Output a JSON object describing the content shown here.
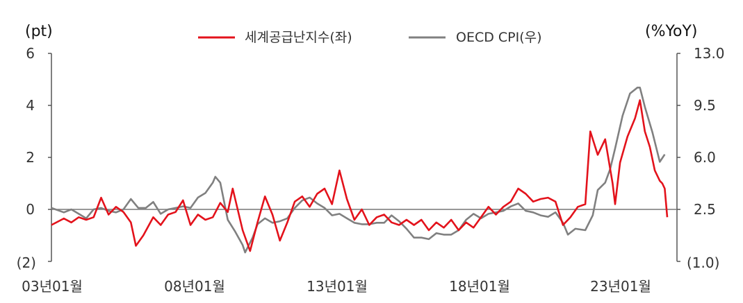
{
  "chart_data": {
    "type": "line",
    "left_unit": "(pt)",
    "right_unit": "(%YoY)",
    "legend_position": "top-center",
    "grid": false,
    "x_ticks": [
      "03년01월",
      "08년01월",
      "13년01월",
      "18년01월",
      "23년01월"
    ],
    "x_range": [
      "2003-01",
      "2023-09"
    ],
    "y_left_ticks": [
      "6",
      "4",
      "2",
      "0",
      "(2)"
    ],
    "y_left_range": [
      -2,
      6
    ],
    "y_right_ticks": [
      "13.0",
      "9.5",
      "6.0",
      "2.5",
      "(1.0)"
    ],
    "y_right_range": [
      -1.0,
      13.0
    ],
    "series": [
      {
        "name": "세계공급난지수(좌)",
        "axis": "left",
        "color": "#e3121b",
        "points": [
          [
            "2003-01",
            -0.6
          ],
          [
            "2003-06",
            -0.35
          ],
          [
            "2003-09",
            -0.5
          ],
          [
            "2003-12",
            -0.3
          ],
          [
            "2004-03",
            -0.4
          ],
          [
            "2004-06",
            -0.3
          ],
          [
            "2004-09",
            0.45
          ],
          [
            "2004-12",
            -0.2
          ],
          [
            "2005-03",
            0.1
          ],
          [
            "2005-06",
            -0.1
          ],
          [
            "2005-09",
            -0.5
          ],
          [
            "2005-11",
            -1.4
          ],
          [
            "2006-02",
            -1.0
          ],
          [
            "2006-06",
            -0.3
          ],
          [
            "2006-09",
            -0.6
          ],
          [
            "2006-12",
            -0.2
          ],
          [
            "2007-03",
            -0.1
          ],
          [
            "2007-06",
            0.35
          ],
          [
            "2007-09",
            -0.6
          ],
          [
            "2007-12",
            -0.2
          ],
          [
            "2008-03",
            -0.4
          ],
          [
            "2008-06",
            -0.3
          ],
          [
            "2008-09",
            0.25
          ],
          [
            "2008-12",
            -0.1
          ],
          [
            "2009-02",
            0.8
          ],
          [
            "2009-06",
            -0.8
          ],
          [
            "2009-09",
            -1.6
          ],
          [
            "2009-12",
            -0.5
          ],
          [
            "2010-03",
            0.5
          ],
          [
            "2010-06",
            -0.2
          ],
          [
            "2010-09",
            -1.2
          ],
          [
            "2010-12",
            -0.5
          ],
          [
            "2011-03",
            0.3
          ],
          [
            "2011-06",
            0.5
          ],
          [
            "2011-09",
            0.1
          ],
          [
            "2011-12",
            0.6
          ],
          [
            "2012-03",
            0.8
          ],
          [
            "2012-06",
            0.2
          ],
          [
            "2012-09",
            1.5
          ],
          [
            "2012-12",
            0.4
          ],
          [
            "2013-03",
            -0.4
          ],
          [
            "2013-06",
            0.0
          ],
          [
            "2013-09",
            -0.6
          ],
          [
            "2013-12",
            -0.3
          ],
          [
            "2014-03",
            -0.2
          ],
          [
            "2014-06",
            -0.5
          ],
          [
            "2014-09",
            -0.6
          ],
          [
            "2014-12",
            -0.4
          ],
          [
            "2015-03",
            -0.6
          ],
          [
            "2015-06",
            -0.4
          ],
          [
            "2015-09",
            -0.8
          ],
          [
            "2015-12",
            -0.5
          ],
          [
            "2016-03",
            -0.7
          ],
          [
            "2016-06",
            -0.4
          ],
          [
            "2016-09",
            -0.8
          ],
          [
            "2016-12",
            -0.5
          ],
          [
            "2017-03",
            -0.7
          ],
          [
            "2017-06",
            -0.3
          ],
          [
            "2017-09",
            0.1
          ],
          [
            "2017-12",
            -0.2
          ],
          [
            "2018-03",
            0.1
          ],
          [
            "2018-06",
            0.3
          ],
          [
            "2018-09",
            0.8
          ],
          [
            "2018-12",
            0.6
          ],
          [
            "2019-03",
            0.3
          ],
          [
            "2019-06",
            0.4
          ],
          [
            "2019-09",
            0.45
          ],
          [
            "2019-12",
            0.3
          ],
          [
            "2020-03",
            -0.6
          ],
          [
            "2020-06",
            -0.3
          ],
          [
            "2020-09",
            0.1
          ],
          [
            "2020-12",
            0.2
          ],
          [
            "2021-02",
            3.0
          ],
          [
            "2021-05",
            2.1
          ],
          [
            "2021-08",
            2.7
          ],
          [
            "2021-11",
            1.0
          ],
          [
            "2021-12",
            0.2
          ],
          [
            "2022-02",
            1.8
          ],
          [
            "2022-05",
            2.8
          ],
          [
            "2022-08",
            3.5
          ],
          [
            "2022-10",
            4.2
          ],
          [
            "2022-12",
            3.0
          ],
          [
            "2023-02",
            2.4
          ],
          [
            "2023-04",
            1.5
          ],
          [
            "2023-06",
            1.1
          ],
          [
            "2023-07",
            1.0
          ],
          [
            "2023-08",
            0.8
          ],
          [
            "2023-09",
            -0.3
          ]
        ]
      },
      {
        "name": "OECD CPI(우)",
        "axis": "right",
        "color": "#808080",
        "points": [
          [
            "2003-01",
            2.6
          ],
          [
            "2003-06",
            2.3
          ],
          [
            "2003-09",
            2.5
          ],
          [
            "2003-12",
            2.2
          ],
          [
            "2004-03",
            1.9
          ],
          [
            "2004-06",
            2.5
          ],
          [
            "2004-09",
            2.6
          ],
          [
            "2004-12",
            2.4
          ],
          [
            "2005-03",
            2.3
          ],
          [
            "2005-06",
            2.5
          ],
          [
            "2005-09",
            3.2
          ],
          [
            "2005-12",
            2.6
          ],
          [
            "2006-03",
            2.6
          ],
          [
            "2006-06",
            3.0
          ],
          [
            "2006-09",
            2.2
          ],
          [
            "2006-12",
            2.5
          ],
          [
            "2007-03",
            2.6
          ],
          [
            "2007-06",
            2.7
          ],
          [
            "2007-09",
            2.6
          ],
          [
            "2007-12",
            3.3
          ],
          [
            "2008-03",
            3.6
          ],
          [
            "2008-06",
            4.3
          ],
          [
            "2008-07",
            4.7
          ],
          [
            "2008-09",
            4.3
          ],
          [
            "2008-12",
            1.8
          ],
          [
            "2009-03",
            1.0
          ],
          [
            "2009-06",
            0.1
          ],
          [
            "2009-07",
            -0.4
          ],
          [
            "2009-10",
            0.6
          ],
          [
            "2009-12",
            1.5
          ],
          [
            "2010-03",
            1.9
          ],
          [
            "2010-06",
            1.6
          ],
          [
            "2010-09",
            1.7
          ],
          [
            "2010-12",
            1.9
          ],
          [
            "2011-03",
            2.6
          ],
          [
            "2011-06",
            3.1
          ],
          [
            "2011-09",
            3.3
          ],
          [
            "2011-12",
            2.9
          ],
          [
            "2012-03",
            2.6
          ],
          [
            "2012-06",
            2.1
          ],
          [
            "2012-09",
            2.2
          ],
          [
            "2012-12",
            1.9
          ],
          [
            "2013-03",
            1.6
          ],
          [
            "2013-06",
            1.5
          ],
          [
            "2013-09",
            1.5
          ],
          [
            "2013-12",
            1.6
          ],
          [
            "2014-03",
            1.6
          ],
          [
            "2014-06",
            2.1
          ],
          [
            "2014-09",
            1.7
          ],
          [
            "2014-12",
            1.2
          ],
          [
            "2015-03",
            0.6
          ],
          [
            "2015-06",
            0.6
          ],
          [
            "2015-09",
            0.5
          ],
          [
            "2015-12",
            0.9
          ],
          [
            "2016-03",
            0.8
          ],
          [
            "2016-06",
            0.8
          ],
          [
            "2016-09",
            1.1
          ],
          [
            "2016-12",
            1.8
          ],
          [
            "2017-03",
            2.2
          ],
          [
            "2017-06",
            1.9
          ],
          [
            "2017-09",
            2.2
          ],
          [
            "2017-12",
            2.3
          ],
          [
            "2018-03",
            2.4
          ],
          [
            "2018-06",
            2.7
          ],
          [
            "2018-09",
            2.9
          ],
          [
            "2018-12",
            2.4
          ],
          [
            "2019-03",
            2.3
          ],
          [
            "2019-06",
            2.1
          ],
          [
            "2019-09",
            2.0
          ],
          [
            "2019-12",
            2.3
          ],
          [
            "2020-03",
            1.6
          ],
          [
            "2020-05",
            0.8
          ],
          [
            "2020-08",
            1.2
          ],
          [
            "2020-12",
            1.1
          ],
          [
            "2021-03",
            2.1
          ],
          [
            "2021-05",
            3.8
          ],
          [
            "2021-08",
            4.3
          ],
          [
            "2021-10",
            5.2
          ],
          [
            "2021-12",
            6.6
          ],
          [
            "2022-03",
            8.8
          ],
          [
            "2022-06",
            10.3
          ],
          [
            "2022-09",
            10.7
          ],
          [
            "2022-10",
            10.7
          ],
          [
            "2022-12",
            9.4
          ],
          [
            "2023-03",
            7.7
          ],
          [
            "2023-06",
            5.7
          ],
          [
            "2023-08",
            6.2
          ]
        ]
      }
    ]
  }
}
